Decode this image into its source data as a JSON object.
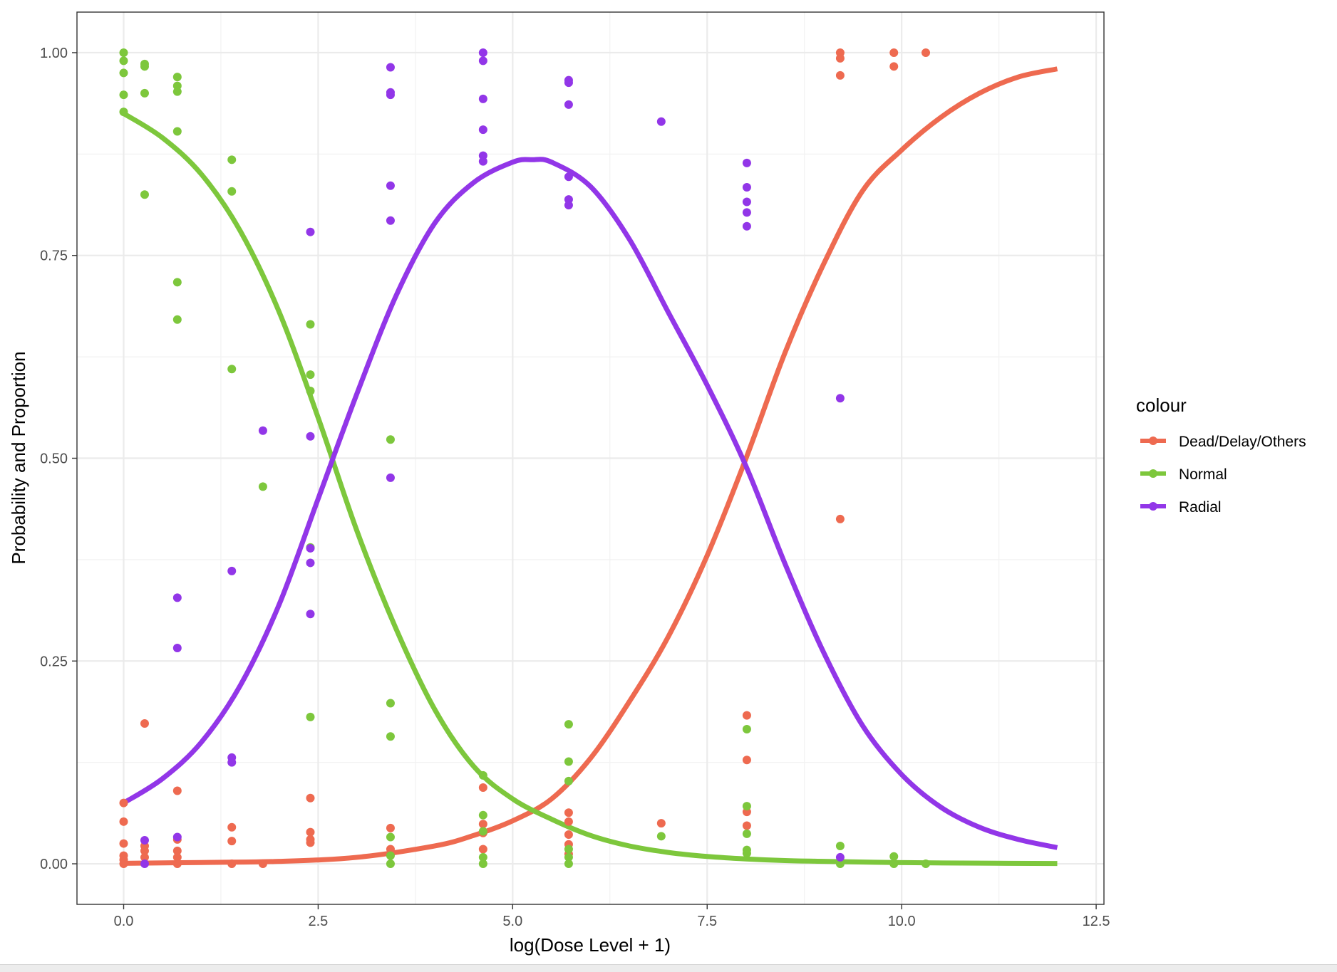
{
  "chart_data": {
    "type": "scatter",
    "title": "",
    "xlabel": "log(Dose Level + 1)",
    "ylabel": "Probability and Proportion",
    "xlim": [
      -0.6,
      12.6
    ],
    "ylim": [
      -0.05,
      1.05
    ],
    "x_ticks": [
      0,
      2.5,
      5,
      7.5,
      10,
      12.5
    ],
    "x_tick_labels": [
      "0.0",
      "2.5",
      "5.0",
      "7.5",
      "10.0",
      "12.5"
    ],
    "y_ticks": [
      0,
      0.25,
      0.5,
      0.75,
      1
    ],
    "y_tick_labels": [
      "0.00",
      "0.25",
      "0.50",
      "0.75",
      "1.00"
    ],
    "grid": true,
    "legend": {
      "title": "colour",
      "position": "right",
      "entries": [
        "Dead/Delay/Others",
        "Normal",
        "Radial"
      ]
    },
    "curve_x_range": [
      0,
      12
    ],
    "series": [
      {
        "name": "Dead/Delay/Others",
        "color": "#ee6a50",
        "curve": [
          [
            0,
            0.0006
          ],
          [
            1,
            0.0016
          ],
          [
            2,
            0.003
          ],
          [
            3,
            0.008
          ],
          [
            4,
            0.022
          ],
          [
            4.5,
            0.035
          ],
          [
            5,
            0.053
          ],
          [
            5.5,
            0.08
          ],
          [
            6,
            0.13
          ],
          [
            6.5,
            0.2
          ],
          [
            7,
            0.28
          ],
          [
            7.5,
            0.38
          ],
          [
            8,
            0.5
          ],
          [
            8.5,
            0.63
          ],
          [
            9,
            0.74
          ],
          [
            9.5,
            0.83
          ],
          [
            10,
            0.88
          ],
          [
            10.5,
            0.92
          ],
          [
            11,
            0.95
          ],
          [
            11.5,
            0.97
          ],
          [
            12,
            0.98
          ]
        ],
        "points": [
          [
            0,
            0.075
          ],
          [
            0,
            0.052
          ],
          [
            0,
            0.025
          ],
          [
            0,
            0.01
          ],
          [
            0,
            0.005
          ],
          [
            0,
            0.0
          ],
          [
            0.27,
            0.173
          ],
          [
            0.27,
            0.022
          ],
          [
            0.27,
            0.016
          ],
          [
            0.27,
            0.008
          ],
          [
            0.69,
            0.09
          ],
          [
            0.69,
            0.03
          ],
          [
            0.69,
            0.016
          ],
          [
            0.69,
            0.008
          ],
          [
            0.69,
            0.0
          ],
          [
            1.39,
            0.045
          ],
          [
            1.39,
            0.028
          ],
          [
            1.39,
            0.0
          ],
          [
            1.79,
            0.0
          ],
          [
            2.4,
            0.081
          ],
          [
            2.4,
            0.039
          ],
          [
            2.4,
            0.03
          ],
          [
            2.4,
            0.026
          ],
          [
            3.43,
            0.044
          ],
          [
            3.43,
            0.018
          ],
          [
            3.43,
            0.012
          ],
          [
            4.62,
            0.094
          ],
          [
            4.62,
            0.049
          ],
          [
            4.62,
            0.038
          ],
          [
            4.62,
            0.018
          ],
          [
            5.72,
            0.063
          ],
          [
            5.72,
            0.052
          ],
          [
            5.72,
            0.036
          ],
          [
            5.72,
            0.024
          ],
          [
            5.72,
            0.012
          ],
          [
            6.91,
            0.05
          ],
          [
            8.01,
            0.183
          ],
          [
            8.01,
            0.128
          ],
          [
            8.01,
            0.064
          ],
          [
            8.01,
            0.047
          ],
          [
            9.21,
            1.0
          ],
          [
            9.21,
            0.993
          ],
          [
            9.21,
            0.972
          ],
          [
            9.21,
            0.425
          ],
          [
            9.9,
            1.0
          ],
          [
            9.9,
            0.983
          ],
          [
            10.31,
            1.0
          ]
        ]
      },
      {
        "name": "Normal",
        "color": "#7dc73c",
        "curve": [
          [
            0,
            0.925
          ],
          [
            0.5,
            0.895
          ],
          [
            1,
            0.85
          ],
          [
            1.5,
            0.78
          ],
          [
            2,
            0.68
          ],
          [
            2.5,
            0.55
          ],
          [
            3,
            0.41
          ],
          [
            3.5,
            0.29
          ],
          [
            4,
            0.19
          ],
          [
            4.5,
            0.12
          ],
          [
            5,
            0.08
          ],
          [
            5.5,
            0.055
          ],
          [
            6,
            0.035
          ],
          [
            6.5,
            0.022
          ],
          [
            7,
            0.014
          ],
          [
            7.5,
            0.009
          ],
          [
            8,
            0.006
          ],
          [
            8.5,
            0.004
          ],
          [
            9,
            0.003
          ],
          [
            10,
            0.0015
          ],
          [
            11,
            0.0008
          ],
          [
            12,
            0.0004
          ]
        ],
        "points": [
          [
            0,
            1.0
          ],
          [
            0,
            0.99
          ],
          [
            0,
            0.975
          ],
          [
            0,
            0.948
          ],
          [
            0,
            0.927
          ],
          [
            0.27,
            0.986
          ],
          [
            0.27,
            0.983
          ],
          [
            0.27,
            0.95
          ],
          [
            0.27,
            0.825
          ],
          [
            0.69,
            0.97
          ],
          [
            0.69,
            0.959
          ],
          [
            0.69,
            0.952
          ],
          [
            0.69,
            0.903
          ],
          [
            0.69,
            0.717
          ],
          [
            0.69,
            0.671
          ],
          [
            1.39,
            0.868
          ],
          [
            1.39,
            0.829
          ],
          [
            1.39,
            0.61
          ],
          [
            1.79,
            0.465
          ],
          [
            2.4,
            0.665
          ],
          [
            2.4,
            0.603
          ],
          [
            2.4,
            0.583
          ],
          [
            2.4,
            0.39
          ],
          [
            2.4,
            0.181
          ],
          [
            3.43,
            0.523
          ],
          [
            3.43,
            0.198
          ],
          [
            3.43,
            0.157
          ],
          [
            3.43,
            0.033
          ],
          [
            3.43,
            0.01
          ],
          [
            3.43,
            0.0
          ],
          [
            4.62,
            0.109
          ],
          [
            4.62,
            0.06
          ],
          [
            4.62,
            0.04
          ],
          [
            4.62,
            0.008
          ],
          [
            4.62,
            0.0
          ],
          [
            5.72,
            0.172
          ],
          [
            5.72,
            0.126
          ],
          [
            5.72,
            0.102
          ],
          [
            5.72,
            0.018
          ],
          [
            5.72,
            0.008
          ],
          [
            5.72,
            0.0
          ],
          [
            6.91,
            0.034
          ],
          [
            8.01,
            0.166
          ],
          [
            8.01,
            0.071
          ],
          [
            8.01,
            0.037
          ],
          [
            8.01,
            0.017
          ],
          [
            8.01,
            0.013
          ],
          [
            9.21,
            0.022
          ],
          [
            9.21,
            0.0
          ],
          [
            9.9,
            0.009
          ],
          [
            9.9,
            0.0
          ],
          [
            10.31,
            0.0
          ]
        ]
      },
      {
        "name": "Radial",
        "color": "#9236e8",
        "curve": [
          [
            0,
            0.075
          ],
          [
            0.5,
            0.105
          ],
          [
            1,
            0.15
          ],
          [
            1.5,
            0.22
          ],
          [
            2,
            0.32
          ],
          [
            2.5,
            0.45
          ],
          [
            3,
            0.58
          ],
          [
            3.5,
            0.7
          ],
          [
            4,
            0.79
          ],
          [
            4.5,
            0.84
          ],
          [
            5,
            0.865
          ],
          [
            5.25,
            0.868
          ],
          [
            5.5,
            0.865
          ],
          [
            6,
            0.835
          ],
          [
            6.5,
            0.77
          ],
          [
            7,
            0.68
          ],
          [
            7.5,
            0.59
          ],
          [
            8,
            0.49
          ],
          [
            8.5,
            0.37
          ],
          [
            9,
            0.26
          ],
          [
            9.5,
            0.17
          ],
          [
            10,
            0.11
          ],
          [
            10.5,
            0.07
          ],
          [
            11,
            0.045
          ],
          [
            11.5,
            0.03
          ],
          [
            12,
            0.02
          ]
        ],
        "points": [
          [
            0.27,
            0.029
          ],
          [
            0.27,
            0.0
          ],
          [
            0.69,
            0.328
          ],
          [
            0.69,
            0.266
          ],
          [
            0.69,
            0.033
          ],
          [
            1.39,
            0.361
          ],
          [
            1.39,
            0.131
          ],
          [
            1.39,
            0.125
          ],
          [
            1.79,
            0.534
          ],
          [
            2.4,
            0.779
          ],
          [
            2.4,
            0.527
          ],
          [
            2.4,
            0.389
          ],
          [
            2.4,
            0.371
          ],
          [
            2.4,
            0.308
          ],
          [
            3.43,
            0.982
          ],
          [
            3.43,
            0.951
          ],
          [
            3.43,
            0.948
          ],
          [
            3.43,
            0.836
          ],
          [
            3.43,
            0.793
          ],
          [
            3.43,
            0.476
          ],
          [
            4.62,
            1.0
          ],
          [
            4.62,
            0.99
          ],
          [
            4.62,
            0.943
          ],
          [
            4.62,
            0.905
          ],
          [
            4.62,
            0.873
          ],
          [
            4.62,
            0.866
          ],
          [
            5.72,
            0.966
          ],
          [
            5.72,
            0.963
          ],
          [
            5.72,
            0.936
          ],
          [
            5.72,
            0.847
          ],
          [
            5.72,
            0.819
          ],
          [
            5.72,
            0.812
          ],
          [
            6.91,
            0.915
          ],
          [
            8.01,
            0.864
          ],
          [
            8.01,
            0.834
          ],
          [
            8.01,
            0.816
          ],
          [
            8.01,
            0.803
          ],
          [
            8.01,
            0.786
          ],
          [
            9.21,
            0.574
          ],
          [
            9.21,
            0.008
          ]
        ]
      }
    ]
  }
}
